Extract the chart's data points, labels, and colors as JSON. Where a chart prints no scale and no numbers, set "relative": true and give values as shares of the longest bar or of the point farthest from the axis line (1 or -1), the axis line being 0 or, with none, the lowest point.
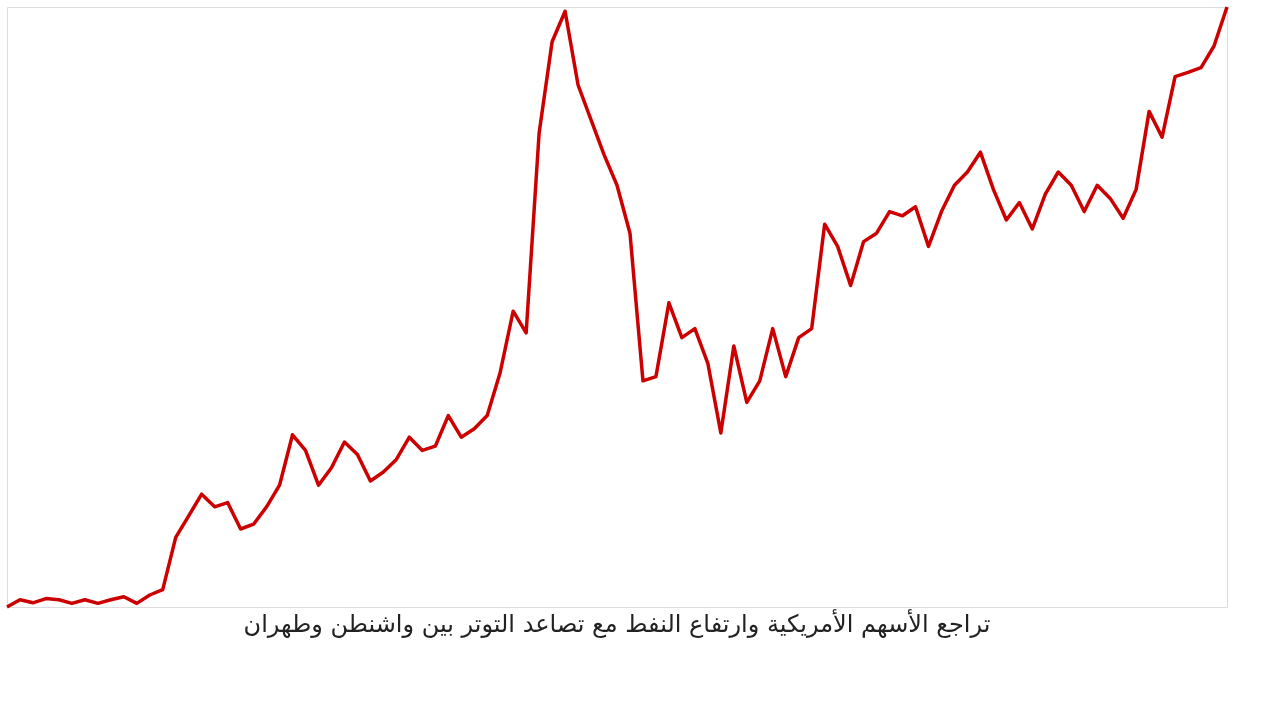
{
  "chart_data": {
    "type": "line",
    "title": "تراجع الأسهم الأمريكية وارتفاع النفط مع تصاعد التوتر بين واشنطن وطهران",
    "relative": true,
    "marker": "none",
    "line_style": "solid",
    "categories": [
      null,
      null,
      null,
      null,
      null,
      null,
      null,
      null,
      null,
      null,
      null,
      null,
      null,
      null,
      null,
      null,
      null,
      null,
      null,
      null,
      null,
      null,
      null,
      null,
      null,
      null,
      null,
      null,
      null,
      null,
      null,
      null,
      null,
      null,
      null,
      null,
      null,
      null,
      null,
      null,
      null,
      null,
      null,
      null,
      null,
      null,
      null,
      null,
      null,
      null,
      null,
      null,
      null,
      null,
      null,
      null,
      null,
      null,
      null,
      null,
      null,
      null,
      null,
      null,
      null,
      null,
      null,
      null,
      null,
      null,
      null,
      null,
      null,
      null,
      null,
      null,
      null,
      null,
      null,
      null,
      null,
      null,
      null,
      null,
      null,
      null,
      null,
      null,
      null,
      null,
      null,
      null,
      null,
      null,
      null
    ],
    "series": [
      {
        "color": "#cc0000",
        "values": [
          0,
          0.012,
          0.007,
          0.014,
          0.012,
          0.006,
          0.012,
          0.006,
          0.012,
          0.017,
          0.006,
          0.02,
          0.029,
          0.116,
          0.152,
          0.188,
          0.167,
          0.174,
          0.13,
          0.138,
          0.167,
          0.203,
          0.287,
          0.261,
          0.203,
          0.232,
          0.275,
          0.254,
          0.21,
          0.225,
          0.246,
          0.283,
          0.261,
          0.268,
          0.319,
          0.283,
          0.297,
          0.319,
          0.391,
          0.493,
          0.457,
          0.79,
          0.942,
          0.993,
          0.87,
          0.812,
          0.754,
          0.703,
          0.623,
          0.377,
          0.384,
          0.507,
          0.449,
          0.464,
          0.406,
          0.29,
          0.435,
          0.341,
          0.377,
          0.464,
          0.384,
          0.449,
          0.464,
          0.638,
          0.601,
          0.536,
          0.609,
          0.623,
          0.659,
          0.652,
          0.667,
          0.601,
          0.659,
          0.703,
          0.725,
          0.758,
          0.696,
          0.645,
          0.674,
          0.63,
          0.688,
          0.725,
          0.703,
          0.659,
          0.703,
          0.681,
          0.648,
          0.696,
          0.826,
          0.783,
          0.884,
          0.891,
          0.899,
          0.935,
          1
        ]
      }
    ]
  }
}
